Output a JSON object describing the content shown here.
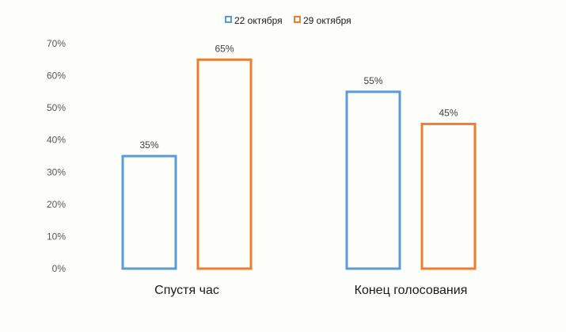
{
  "chart_data": {
    "type": "bar",
    "title": "",
    "xlabel": "",
    "ylabel": "",
    "categories": [
      "Спустя час",
      "Конец голосования"
    ],
    "series": [
      {
        "name": "22 октября",
        "values": [
          35,
          55
        ],
        "color": "#5b9bd5"
      },
      {
        "name": "29 октября",
        "values": [
          65,
          45
        ],
        "color": "#ed7d31"
      }
    ],
    "ylim": [
      0,
      70
    ],
    "yticks": [
      0,
      10,
      20,
      30,
      40,
      50,
      60,
      70
    ],
    "value_format": "percent",
    "legend_position": "top-center",
    "grid": false,
    "bar_style": "outline"
  }
}
